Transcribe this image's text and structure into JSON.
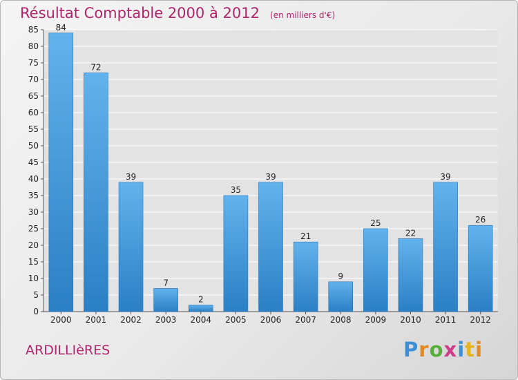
{
  "title": "Résultat Comptable 2000 à 2012",
  "subtitle": "(en milliers d'€)",
  "commune": "ARDILLIèRES",
  "logo": [
    "P",
    "r",
    "o",
    "x",
    "i",
    "t",
    "i"
  ],
  "colors": {
    "bar_light": "#62b2ec",
    "bar_dark": "#2b7fc4",
    "title": "#b0246a",
    "grid": "#ffffff"
  },
  "chart_data": {
    "type": "bar",
    "title": "Résultat Comptable 2000 à 2012",
    "xlabel": "",
    "ylabel": "",
    "categories": [
      "2000",
      "2001",
      "2002",
      "2003",
      "2004",
      "2005",
      "2006",
      "2007",
      "2008",
      "2009",
      "2010",
      "2011",
      "2012"
    ],
    "values": [
      84,
      72,
      39,
      7,
      2,
      35,
      39,
      21,
      9,
      25,
      22,
      39,
      26
    ],
    "ylim": [
      0,
      85
    ],
    "yticks": [
      0,
      5,
      10,
      15,
      20,
      25,
      30,
      35,
      40,
      45,
      50,
      55,
      60,
      65,
      70,
      75,
      80,
      85
    ],
    "grid": true
  }
}
